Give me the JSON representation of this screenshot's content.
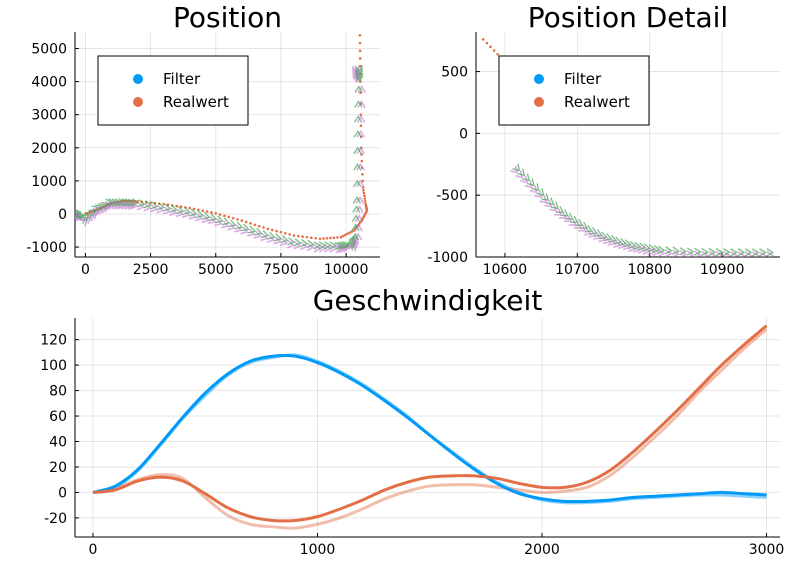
{
  "colors": {
    "filter": "#009af9",
    "realwert": "#e26f46",
    "arrow_green": "#3da44d",
    "arrow_purple": "#c271d2"
  },
  "legend": {
    "filter": "Filter",
    "realwert": "Realwert"
  },
  "chart_data": [
    {
      "id": "position",
      "type": "line",
      "title": "Position",
      "xlim": [
        -400,
        11300
      ],
      "ylim": [
        -1300,
        5500
      ],
      "xticks": [
        0,
        2500,
        5000,
        7500,
        10000
      ],
      "xtick_labels": [
        "0",
        "2500",
        "5000",
        "7500",
        "10000"
      ],
      "yticks": [
        -1000,
        0,
        1000,
        2000,
        3000,
        4000,
        5000
      ],
      "ytick_labels": [
        "-1000",
        "0",
        "1000",
        "2000",
        "3000",
        "4000",
        "5000"
      ],
      "legend_position": "top-left",
      "series": [
        {
          "name": "Filter",
          "style": "arrows",
          "x": [
            -300,
            0,
            500,
            1000,
            1500,
            2000,
            3000,
            4000,
            5000,
            6000,
            7000,
            8000,
            9000,
            9800,
            10200,
            10350,
            10420,
            10450,
            10500,
            10520
          ],
          "y": [
            0,
            -100,
            200,
            350,
            350,
            330,
            200,
            50,
            -150,
            -400,
            -650,
            -850,
            -950,
            -950,
            -900,
            -600,
            500,
            2500,
            4300,
            4000
          ]
        },
        {
          "name": "Realwert",
          "style": "dots",
          "x": [
            0,
            500,
            1000,
            1500,
            2000,
            3000,
            4000,
            5000,
            6000,
            7000,
            8000,
            9000,
            9800,
            10300,
            10600,
            10800,
            10750,
            10650,
            10580,
            10550,
            10530
          ],
          "y": [
            0,
            150,
            330,
            400,
            380,
            300,
            180,
            20,
            -200,
            -450,
            -650,
            -750,
            -700,
            -500,
            -200,
            100,
            300,
            800,
            2000,
            4000,
            5400
          ]
        }
      ]
    },
    {
      "id": "position-detail",
      "type": "line",
      "title": "Position Detail",
      "xlim": [
        10560,
        10980
      ],
      "ylim": [
        -1000,
        820
      ],
      "xticks": [
        10600,
        10700,
        10800,
        10900
      ],
      "xtick_labels": [
        "10600",
        "10700",
        "10800",
        "10900"
      ],
      "yticks": [
        -1000,
        -500,
        0,
        500
      ],
      "ytick_labels": [
        "-1000",
        "-500",
        "0",
        "500"
      ],
      "legend_position": "top-left",
      "series": [
        {
          "name": "Filter",
          "style": "arrows",
          "x": [
            10620,
            10640,
            10660,
            10680,
            10700,
            10720,
            10740,
            10760,
            10780,
            10800,
            10820,
            10850,
            10880,
            10910,
            10940,
            10970
          ],
          "y": [
            -300,
            -420,
            -540,
            -640,
            -720,
            -790,
            -840,
            -880,
            -910,
            -930,
            -945,
            -955,
            -960,
            -962,
            -963,
            -963
          ]
        },
        {
          "name": "Realwert",
          "style": "dots",
          "x": [
            10570,
            10580,
            10590,
            10600,
            10610
          ],
          "y": [
            760,
            700,
            640,
            580,
            520
          ]
        }
      ]
    },
    {
      "id": "geschwindigkeit",
      "type": "line",
      "title": "Geschwindigkeit",
      "xlim": [
        -80,
        3060
      ],
      "ylim": [
        -35,
        137
      ],
      "xticks": [
        0,
        1000,
        2000,
        3000
      ],
      "xtick_labels": [
        "0",
        "1000",
        "2000",
        "3000"
      ],
      "yticks": [
        -20,
        0,
        20,
        40,
        60,
        80,
        100,
        120
      ],
      "ytick_labels": [
        "-20",
        "0",
        "20",
        "40",
        "60",
        "80",
        "100",
        "120"
      ],
      "x": [
        0,
        100,
        200,
        300,
        400,
        500,
        600,
        700,
        800,
        900,
        1000,
        1100,
        1200,
        1300,
        1400,
        1500,
        1600,
        1700,
        1800,
        1900,
        2000,
        2100,
        2200,
        2300,
        2400,
        2500,
        2600,
        2700,
        2800,
        2900,
        3000
      ],
      "series": [
        {
          "name": "Filter",
          "role": "smooth",
          "values": [
            0,
            5,
            18,
            38,
            59,
            78,
            93,
            103,
            107,
            107,
            102,
            94,
            84,
            72,
            59,
            45,
            31,
            18,
            7,
            -1,
            -5,
            -7,
            -7,
            -6,
            -4,
            -3,
            -2,
            -1,
            0,
            -1,
            -2
          ]
        },
        {
          "name": "Filter",
          "role": "raw",
          "values": [
            0,
            4,
            17,
            37,
            58,
            76,
            92,
            102,
            106,
            108,
            103,
            95,
            85,
            73,
            60,
            45,
            32,
            19,
            8,
            0,
            -6,
            -8,
            -8,
            -7,
            -5,
            -4,
            -3,
            -2,
            -2,
            -3,
            -4
          ]
        },
        {
          "name": "Realwert",
          "role": "smooth",
          "values": [
            0,
            2,
            9,
            12,
            9,
            -1,
            -12,
            -19,
            -22,
            -22,
            -19,
            -13,
            -6,
            2,
            8,
            12,
            13,
            13,
            11,
            7,
            4,
            4,
            8,
            17,
            31,
            47,
            64,
            82,
            100,
            116,
            131
          ]
        },
        {
          "name": "Realwert",
          "role": "raw",
          "values": [
            0,
            3,
            10,
            14,
            11,
            -4,
            -18,
            -25,
            -27,
            -28,
            -25,
            -20,
            -13,
            -5,
            1,
            5,
            6,
            6,
            4,
            2,
            0,
            1,
            4,
            13,
            27,
            43,
            60,
            79,
            96,
            113,
            128
          ]
        }
      ]
    }
  ]
}
